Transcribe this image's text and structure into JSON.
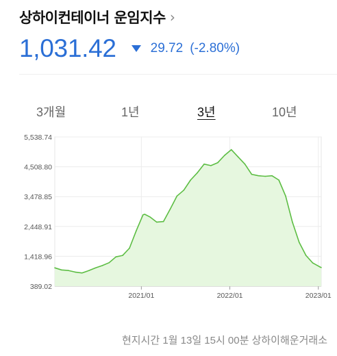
{
  "header": {
    "title": "상하이컨테이너 운임지수",
    "chevron_icon": "chevron-right-icon"
  },
  "quote": {
    "price": "1,031.42",
    "direction": "down",
    "change": "29.72",
    "change_pct": "(-2.80%)",
    "color": "#2b6fd6"
  },
  "tabs": [
    {
      "label": "3개월",
      "active": false
    },
    {
      "label": "1년",
      "active": false
    },
    {
      "label": "3년",
      "active": true
    },
    {
      "label": "10년",
      "active": false
    }
  ],
  "chart_data": {
    "type": "area",
    "series_color": "#5cbd43",
    "fill_color": "#e6f7df",
    "ylim": [
      389.02,
      5538.74
    ],
    "y_ticks": [
      "5,538.74",
      "4,508.80",
      "3,478.85",
      "2,448.91",
      "1,418.96",
      "389.02"
    ],
    "y_tick_values": [
      5538.74,
      4508.8,
      3478.85,
      2448.91,
      1418.96,
      389.02
    ],
    "x_tick_labels": [
      "2021/01",
      "2022/01",
      "2023/01"
    ],
    "x_tick_values": [
      "2021-01-01",
      "2022-01-01",
      "2023-01-01"
    ],
    "xlim": [
      "2020-01-10",
      "2023-01-13"
    ],
    "grid": true,
    "x": [
      "2020-01-10",
      "2020-02-07",
      "2020-03-06",
      "2020-04-03",
      "2020-05-01",
      "2020-05-29",
      "2020-06-26",
      "2020-07-24",
      "2020-08-21",
      "2020-09-18",
      "2020-10-16",
      "2020-11-13",
      "2020-12-11",
      "2021-01-08",
      "2021-01-15",
      "2021-02-05",
      "2021-03-05",
      "2021-04-02",
      "2021-04-30",
      "2021-05-28",
      "2021-06-25",
      "2021-07-23",
      "2021-08-20",
      "2021-09-17",
      "2021-10-15",
      "2021-11-12",
      "2021-12-10",
      "2022-01-07",
      "2022-02-04",
      "2022-03-04",
      "2022-04-01",
      "2022-04-29",
      "2022-05-27",
      "2022-06-24",
      "2022-07-22",
      "2022-08-19",
      "2022-09-16",
      "2022-10-14",
      "2022-11-11",
      "2022-12-09",
      "2023-01-06",
      "2023-01-13"
    ],
    "values": [
      1023,
      950,
      930,
      875,
      845,
      925,
      1020,
      1100,
      1200,
      1400,
      1450,
      1700,
      2300,
      2850,
      2870,
      2780,
      2600,
      2620,
      3050,
      3500,
      3700,
      4050,
      4300,
      4600,
      4550,
      4650,
      4900,
      5100,
      4850,
      4600,
      4250,
      4200,
      4180,
      4200,
      4050,
      3500,
      2600,
      1900,
      1450,
      1190,
      1061,
      1031
    ]
  },
  "footer": {
    "text": "현지시간 1월 13일 15시 00분 상하이해운거래소"
  }
}
